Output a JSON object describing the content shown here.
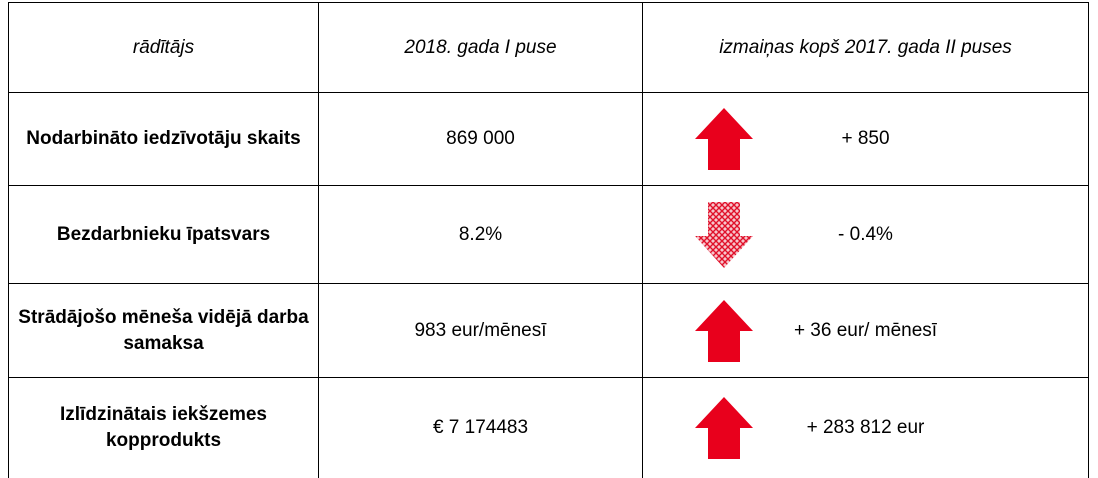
{
  "table": {
    "header": [
      "rādītājs",
      "2018. gada I puse",
      "izmaiņas kopš 2017. gada II puses"
    ],
    "rows": [
      [
        "Nodarbināto iedzīvotāju skaits",
        "869 000",
        "+ 850"
      ],
      [
        "Bezdarbnieku īpatsvars",
        "8.2%",
        "- 0.4%"
      ],
      [
        "Strādājošo mēneša vidējā darba samaksa",
        "983 eur/mēnesī",
        "+ 36 eur/ mēnesī"
      ],
      [
        "Izlīdzinātais iekšzemes kopprodukts",
        "€ 7 174483",
        "+ 283 812 eur"
      ]
    ]
  }
}
